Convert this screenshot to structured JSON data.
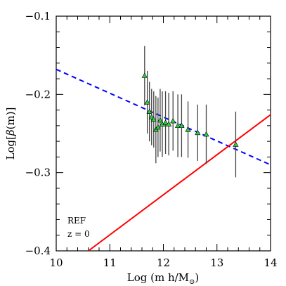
{
  "chart_data": {
    "type": "scatter",
    "xlabel": {
      "main": "Log (m h/M",
      "sub": "⊙",
      "close": ")"
    },
    "ylabel": {
      "pre": "Log[",
      "beta": "β",
      "post": "(m)]"
    },
    "xlim": [
      10,
      14
    ],
    "ylim": [
      -0.4,
      -0.1
    ],
    "x_ticks": [
      10,
      11,
      12,
      13,
      14
    ],
    "x_tick_labels": [
      "10",
      "11",
      "12",
      "13",
      "14"
    ],
    "y_ticks": [
      -0.4,
      -0.3,
      -0.2,
      -0.1
    ],
    "y_tick_labels": [
      "−0.4",
      "−0.3",
      "−0.2",
      "−0.1"
    ],
    "annotations": [
      "REF",
      "z = 0"
    ],
    "colors": {
      "points": "#2ecc40",
      "fit": "#0000ff",
      "model": "#ff0000",
      "errorbar": "#444444"
    },
    "points": [
      {
        "x": 11.65,
        "y": -0.176,
        "err": 0.038
      },
      {
        "x": 11.7,
        "y": -0.21,
        "err": 0.04
      },
      {
        "x": 11.74,
        "y": -0.222,
        "err": 0.038
      },
      {
        "x": 11.78,
        "y": -0.229,
        "err": 0.036
      },
      {
        "x": 11.82,
        "y": -0.232,
        "err": 0.036
      },
      {
        "x": 11.86,
        "y": -0.245,
        "err": 0.043
      },
      {
        "x": 11.9,
        "y": -0.242,
        "err": 0.038
      },
      {
        "x": 11.94,
        "y": -0.233,
        "err": 0.04
      },
      {
        "x": 11.98,
        "y": -0.238,
        "err": 0.042
      },
      {
        "x": 12.04,
        "y": -0.236,
        "err": 0.04
      },
      {
        "x": 12.1,
        "y": -0.238,
        "err": 0.04
      },
      {
        "x": 12.18,
        "y": -0.234,
        "err": 0.038
      },
      {
        "x": 12.27,
        "y": -0.24,
        "err": 0.04
      },
      {
        "x": 12.34,
        "y": -0.24,
        "err": 0.04
      },
      {
        "x": 12.46,
        "y": -0.245,
        "err": 0.036
      },
      {
        "x": 12.64,
        "y": -0.249,
        "err": 0.036
      },
      {
        "x": 12.8,
        "y": -0.251,
        "err": 0.038
      },
      {
        "x": 13.35,
        "y": -0.264,
        "err": 0.042
      }
    ],
    "fit_line": {
      "x": [
        10,
        14
      ],
      "y": [
        -0.168,
        -0.29
      ],
      "style": "dashed"
    },
    "model_line": {
      "x": [
        10.6,
        14
      ],
      "y": [
        -0.4,
        -0.226
      ],
      "style": "solid"
    }
  }
}
